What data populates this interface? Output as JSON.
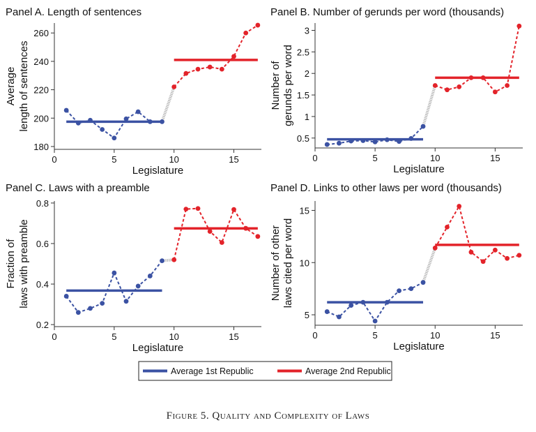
{
  "caption": "Figure 5. Quality and Complexity of Laws",
  "colors": {
    "republic1": "#3b52a3",
    "republic2": "#e3232a",
    "link": "#b0b0b0",
    "axis": "#333333"
  },
  "legend": {
    "republic1": "Average 1st Republic",
    "republic2": "Average 2nd Republic"
  },
  "chart_data": [
    {
      "id": "A",
      "type": "line",
      "title": "Panel A. Length of sentences",
      "xlabel": "Legislature",
      "ylabel": [
        "Average",
        "length of sentences"
      ],
      "xlim": [
        0,
        17.3
      ],
      "ylim": [
        178,
        267
      ],
      "xticks": [
        0,
        5,
        10,
        15
      ],
      "yticks": [
        180,
        200,
        220,
        240,
        260
      ],
      "ytick_labels": [
        "180",
        "200",
        "220",
        "240",
        "260"
      ],
      "series": [
        {
          "name": "1st Republic",
          "x": [
            1,
            2,
            3,
            4,
            5,
            6,
            7,
            8,
            9
          ],
          "y": [
            205.5,
            196.5,
            198.5,
            192,
            186,
            199.5,
            204.5,
            197.5,
            197.5
          ]
        },
        {
          "name": "2nd Republic",
          "x": [
            10,
            11,
            12,
            13,
            14,
            15,
            16,
            17
          ],
          "y": [
            222,
            231.5,
            234.5,
            236,
            234.5,
            243.5,
            260,
            265.5
          ]
        }
      ],
      "averages": [
        {
          "name": "Average 1st Republic",
          "x": [
            1,
            9
          ],
          "y": 197.5
        },
        {
          "name": "Average 2nd Republic",
          "x": [
            10,
            17
          ],
          "y": 241
        }
      ]
    },
    {
      "id": "B",
      "type": "line",
      "title": "Panel B. Number of gerunds per word (thousands)",
      "xlabel": "Legislature",
      "ylabel": [
        "Number of",
        "gerunds per word"
      ],
      "xlim": [
        0,
        17.3
      ],
      "ylim": [
        0.27,
        3.17
      ],
      "xticks": [
        0,
        5,
        10,
        15
      ],
      "yticks": [
        0.5,
        1,
        1.5,
        2,
        2.5,
        3
      ],
      "ytick_labels": [
        "0.5",
        "1",
        "1.5",
        "2",
        "2.5",
        "3"
      ],
      "series": [
        {
          "name": "1st Republic",
          "x": [
            1,
            2,
            3,
            4,
            5,
            6,
            7,
            8,
            9
          ],
          "y": [
            0.35,
            0.38,
            0.43,
            0.44,
            0.41,
            0.46,
            0.42,
            0.49,
            0.77
          ]
        },
        {
          "name": "2nd Republic",
          "x": [
            10,
            11,
            12,
            13,
            14,
            15,
            16,
            17
          ],
          "y": [
            1.72,
            1.62,
            1.69,
            1.9,
            1.9,
            1.57,
            1.72,
            3.1
          ]
        }
      ],
      "averages": [
        {
          "name": "Average 1st Republic",
          "x": [
            1,
            9
          ],
          "y": 0.47
        },
        {
          "name": "Average 2nd Republic",
          "x": [
            10,
            17
          ],
          "y": 1.9
        }
      ]
    },
    {
      "id": "C",
      "type": "line",
      "title": "Panel C. Laws with a preamble",
      "xlabel": "Legislature",
      "ylabel": [
        "Fraction of",
        "laws with preamble"
      ],
      "xlim": [
        0,
        17.3
      ],
      "ylim": [
        0.19,
        0.81
      ],
      "xticks": [
        0,
        5,
        10,
        15
      ],
      "yticks": [
        0.2,
        0.4,
        0.6,
        0.8
      ],
      "ytick_labels": [
        "0.2",
        "0.4",
        "0.6",
        "0.8"
      ],
      "series": [
        {
          "name": "1st Republic",
          "x": [
            1,
            2,
            3,
            4,
            5,
            6,
            7,
            8,
            9
          ],
          "y": [
            0.34,
            0.26,
            0.28,
            0.305,
            0.455,
            0.315,
            0.39,
            0.44,
            0.515
          ]
        },
        {
          "name": "2nd Republic",
          "x": [
            10,
            11,
            12,
            13,
            14,
            15,
            16,
            17
          ],
          "y": [
            0.52,
            0.77,
            0.773,
            0.66,
            0.605,
            0.768,
            0.675,
            0.635
          ]
        }
      ],
      "averages": [
        {
          "name": "Average 1st Republic",
          "x": [
            1,
            9
          ],
          "y": 0.368
        },
        {
          "name": "Average 2nd Republic",
          "x": [
            10,
            17
          ],
          "y": 0.675
        }
      ]
    },
    {
      "id": "D",
      "type": "line",
      "title": "Panel D. Links to other laws per word (thousands)",
      "xlabel": "Legislature",
      "ylabel": [
        "Number of other",
        "laws cited per word"
      ],
      "xlim": [
        0,
        17.3
      ],
      "ylim": [
        4.0,
        15.9
      ],
      "xticks": [
        0,
        5,
        10,
        15
      ],
      "yticks": [
        5,
        10,
        15
      ],
      "ytick_labels": [
        "5",
        "10",
        "15"
      ],
      "series": [
        {
          "name": "1st Republic",
          "x": [
            1,
            2,
            3,
            4,
            5,
            6,
            7,
            8,
            9
          ],
          "y": [
            5.3,
            4.8,
            5.9,
            6.2,
            4.4,
            6.2,
            7.3,
            7.5,
            8.1
          ]
        },
        {
          "name": "2nd Republic",
          "x": [
            10,
            11,
            12,
            13,
            14,
            15,
            16,
            17
          ],
          "y": [
            11.4,
            13.4,
            15.4,
            11.0,
            10.1,
            11.2,
            10.4,
            10.7
          ]
        }
      ],
      "averages": [
        {
          "name": "Average 1st Republic",
          "x": [
            1,
            9
          ],
          "y": 6.2
        },
        {
          "name": "Average 2nd Republic",
          "x": [
            10,
            17
          ],
          "y": 11.7
        }
      ]
    }
  ]
}
